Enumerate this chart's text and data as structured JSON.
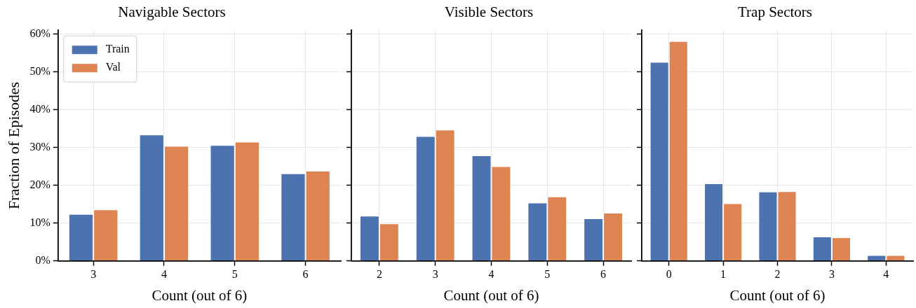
{
  "chart_data": [
    {
      "type": "bar",
      "title": "Navigable Sectors",
      "xlabel": "Count (out of 6)",
      "ylabel": "Fraction of Episodes",
      "categories": [
        "3",
        "4",
        "5",
        "6"
      ],
      "series": [
        {
          "name": "Train",
          "color": "#4c72b0",
          "values": [
            12.4,
            33.4,
            30.6,
            23.1
          ]
        },
        {
          "name": "Val",
          "color": "#dd8452",
          "values": [
            13.6,
            30.4,
            31.5,
            23.8
          ]
        }
      ],
      "ylim": [
        0,
        61
      ],
      "yticks": [
        {
          "value": 0,
          "label": "0%"
        },
        {
          "value": 10,
          "label": "10%"
        },
        {
          "value": 20,
          "label": "20%"
        },
        {
          "value": 30,
          "label": "30%"
        },
        {
          "value": 40,
          "label": "40%"
        },
        {
          "value": 50,
          "label": "50%"
        },
        {
          "value": 60,
          "label": "60%"
        }
      ],
      "grid": true,
      "legend": "top left"
    },
    {
      "type": "bar",
      "title": "Visible Sectors",
      "xlabel": "Count (out of 6)",
      "categories": [
        "2",
        "3",
        "4",
        "5",
        "6"
      ],
      "series": [
        {
          "color": "#4c72b0",
          "values": [
            11.9,
            33.0,
            27.9,
            15.4,
            11.2
          ]
        },
        {
          "color": "#dd8452",
          "values": [
            9.9,
            34.7,
            25.0,
            17.0,
            12.7
          ]
        }
      ],
      "ylim": [
        0,
        61
      ],
      "yticks": [
        0,
        10,
        20,
        30,
        40,
        50,
        60
      ],
      "grid": true,
      "tick_labels": "x"
    },
    {
      "type": "bar",
      "title": "Trap Sectors",
      "xlabel": "Count (out of 6)",
      "categories": [
        "0",
        "1",
        "2",
        "3",
        "4"
      ],
      "series": [
        {
          "color": "#4c72b0",
          "values": [
            52.6,
            20.5,
            18.3,
            6.4,
            1.5
          ]
        },
        {
          "color": "#dd8452",
          "values": [
            58.1,
            15.2,
            18.4,
            6.2,
            1.5
          ]
        }
      ],
      "ylim": [
        0,
        61
      ],
      "yticks": [
        0,
        10,
        20,
        30,
        40,
        50,
        60
      ],
      "grid": true,
      "tick_labels": "x"
    }
  ]
}
